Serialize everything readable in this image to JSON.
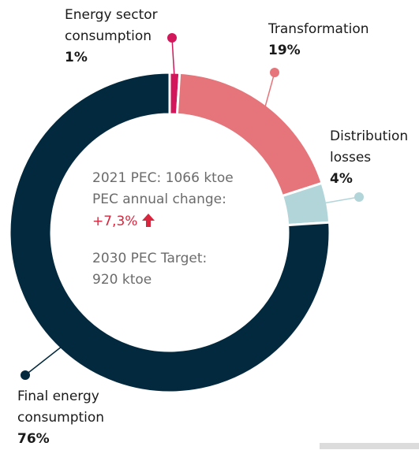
{
  "chart_data": {
    "type": "donut",
    "categories": [
      "Energy sector consumption",
      "Transformation",
      "Distribution losses",
      "Final energy consumption"
    ],
    "values": [
      1,
      19,
      4,
      76
    ],
    "value_labels": [
      "1%",
      "19%",
      "4%",
      "76%"
    ],
    "colors": [
      "#d2185a",
      "#e5757a",
      "#b2d5d9",
      "#02293d"
    ],
    "annotations": [
      "2021 PEC: 1066 ktoe",
      "PEC annual change:",
      "+7,3%",
      "2030 PEC Target:",
      "920 ktoe"
    ]
  }
}
